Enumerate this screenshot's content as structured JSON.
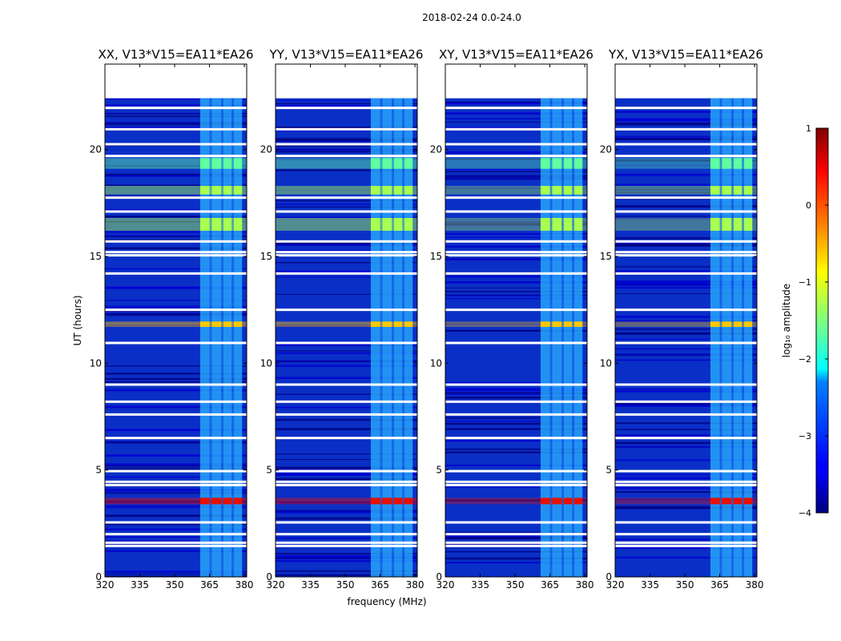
{
  "chart_data": {
    "type": "heatmap",
    "suptitle": "2018-02-24 0.0-24.0",
    "xlabel": "frequency (MHz)",
    "ylabel": "UT (hours)",
    "xlim": [
      320,
      381
    ],
    "ylim": [
      0,
      24
    ],
    "xticks": [
      320,
      335,
      350,
      365,
      380
    ],
    "xtick_labels": [
      "320",
      "335",
      "350",
      "365",
      "380"
    ],
    "yticks": [
      0,
      5,
      10,
      15,
      20
    ],
    "ytick_labels": [
      "0",
      "5",
      "10",
      "15",
      "20"
    ],
    "panels": [
      {
        "title": "XX, V13*V15=EA11*EA26",
        "polarization": "XX"
      },
      {
        "title": "YY, V13*V15=EA11*EA26",
        "polarization": "YY"
      },
      {
        "title": "XY, V13*V15=EA11*EA26",
        "polarization": "XY"
      },
      {
        "title": "YX, V13*V15=EA11*EA26",
        "polarization": "YX"
      }
    ],
    "data_end_hour": 22.4,
    "rfi_band_mhz": [
      361,
      379
    ],
    "rfi_subbands_mhz": [
      [
        361,
        365
      ],
      [
        366,
        370
      ],
      [
        371,
        374.5
      ],
      [
        375.5,
        379
      ]
    ],
    "rfi_periods_hours": [
      {
        "start": 3.4,
        "end": 3.7,
        "log10_amplitude": 0.3
      },
      {
        "start": 11.7,
        "end": 11.95,
        "log10_amplitude": -0.9
      },
      {
        "start": 16.2,
        "end": 16.8,
        "log10_amplitude": -1.1
      },
      {
        "start": 17.9,
        "end": 18.3,
        "log10_amplitude": -1.3
      },
      {
        "start": 19.1,
        "end": 19.6,
        "log10_amplitude": -1.5
      }
    ],
    "flagged_gaps_hours": [
      1.45,
      1.6,
      2.0,
      2.55,
      4.3,
      4.45,
      4.95,
      6.5,
      7.6,
      8.2,
      9.0,
      10.95,
      12.5,
      14.2,
      15.05,
      15.2,
      15.7,
      17.1,
      17.75,
      19.7,
      20.25,
      20.95,
      21.95
    ],
    "colorbar": {
      "label": "log₁₀ amplitude",
      "range": [
        -4,
        1
      ],
      "ticks": [
        1,
        0,
        -1,
        -2,
        -3,
        -4
      ],
      "tick_labels": [
        "1",
        "0",
        "−1",
        "−2",
        "−3",
        "−4"
      ],
      "colormap": "jet"
    }
  }
}
